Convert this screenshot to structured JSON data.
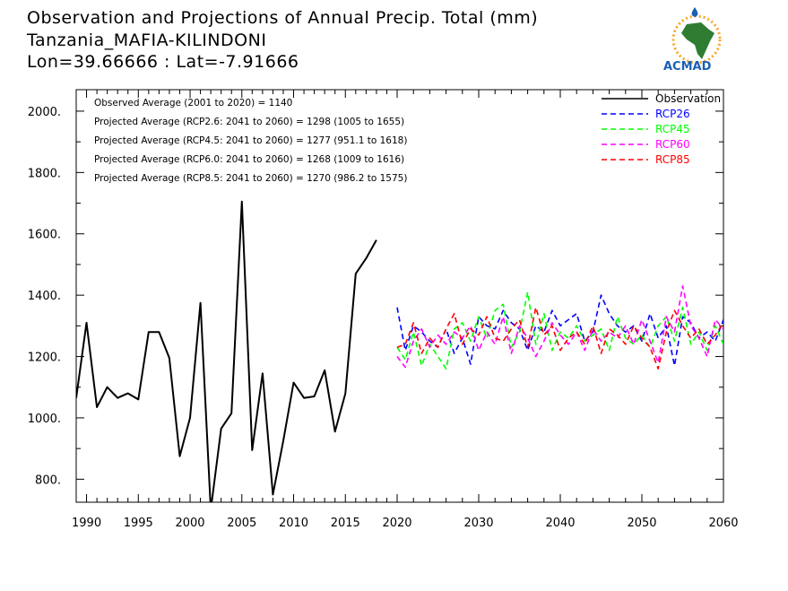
{
  "header": {
    "title": "Observation and Projections of Annual Precip. Total (mm)",
    "location": "Tanzania_MAFIA-KILINDONI",
    "coords": "Lon=39.66666 : Lat=-7.91666"
  },
  "logo": {
    "text": "ACMAD",
    "colors": {
      "africa": "#2e7d32",
      "ring": "#f5a623",
      "text": "#1a5fb4"
    }
  },
  "chart_data": {
    "type": "line",
    "xlim": [
      1989,
      2060
    ],
    "ylim": [
      725,
      2070
    ],
    "x_ticks": [
      1990,
      1995,
      2000,
      2005,
      2010,
      2015,
      2020,
      2030,
      2040,
      2050,
      2060
    ],
    "y_ticks": [
      800,
      1000,
      1200,
      1400,
      1600,
      1800,
      2000
    ],
    "y_tick_labels": [
      "800.",
      "1000.",
      "1200.",
      "1400.",
      "1600.",
      "1800.",
      "2000."
    ],
    "annotations": [
      "Observed Average (2001 to 2020) = 1140",
      "Projected Average (RCP2.6: 2041 to 2060) = 1298 (1005 to 1655)",
      "Projected Average (RCP4.5: 2041 to 2060) = 1277 (951.1 to 1618)",
      "Projected Average (RCP6.0: 2041 to 2060) = 1268 (1009 to 1616)",
      "Projected Average (RCP8.5: 2041 to 2060) = 1270 (986.2 to 1575)"
    ],
    "legend_position": "top-right",
    "series": [
      {
        "name": "Observation",
        "color": "#000000",
        "dashed": false,
        "x": [
          1989,
          1990,
          1991,
          1992,
          1993,
          1994,
          1995,
          1996,
          1997,
          1998,
          1999,
          2000,
          2001,
          2002,
          2003,
          2004,
          2005,
          2006,
          2007,
          2008,
          2009,
          2010,
          2011,
          2012,
          2013,
          2014,
          2015,
          2016,
          2017,
          2018,
          2019
        ],
        "values": [
          1065,
          1310,
          1035,
          1100,
          1065,
          1080,
          1060,
          1280,
          1280,
          1195,
          875,
          1000,
          1375,
          700,
          965,
          1015,
          1705,
          895,
          1145,
          750,
          925,
          1115,
          1065,
          1070,
          1155,
          955,
          1080,
          1470,
          1520,
          1580,
          null
        ]
      },
      {
        "name": "RCP26",
        "color": "#0000ff",
        "dashed": true,
        "x": [
          2020,
          2021,
          2022,
          2023,
          2024,
          2025,
          2026,
          2027,
          2028,
          2029,
          2030,
          2031,
          2032,
          2033,
          2034,
          2035,
          2036,
          2037,
          2038,
          2039,
          2040,
          2041,
          2042,
          2043,
          2044,
          2045,
          2046,
          2047,
          2048,
          2049,
          2050,
          2051,
          2052,
          2053,
          2054,
          2055,
          2056,
          2057,
          2058,
          2059,
          2060
        ],
        "values": [
          1360,
          1220,
          1300,
          1280,
          1250,
          1230,
          1290,
          1210,
          1260,
          1175,
          1330,
          1300,
          1290,
          1350,
          1310,
          1290,
          1220,
          1300,
          1280,
          1350,
          1300,
          1320,
          1340,
          1250,
          1280,
          1400,
          1340,
          1300,
          1280,
          1300,
          1250,
          1340,
          1260,
          1300,
          1170,
          1330,
          1310,
          1260,
          1280,
          1250,
          1320
        ]
      },
      {
        "name": "RCP45",
        "color": "#00ff00",
        "dashed": true,
        "x": [
          2020,
          2021,
          2022,
          2023,
          2024,
          2025,
          2026,
          2027,
          2028,
          2029,
          2030,
          2031,
          2032,
          2033,
          2034,
          2035,
          2036,
          2037,
          2038,
          2039,
          2040,
          2041,
          2042,
          2043,
          2044,
          2045,
          2046,
          2047,
          2048,
          2049,
          2050,
          2051,
          2052,
          2053,
          2054,
          2055,
          2056,
          2057,
          2058,
          2059,
          2060
        ],
        "values": [
          1230,
          1190,
          1280,
          1170,
          1240,
          1200,
          1160,
          1290,
          1310,
          1250,
          1330,
          1260,
          1350,
          1370,
          1230,
          1280,
          1410,
          1240,
          1340,
          1220,
          1280,
          1260,
          1300,
          1250,
          1270,
          1290,
          1220,
          1330,
          1260,
          1240,
          1270,
          1230,
          1300,
          1330,
          1250,
          1360,
          1240,
          1280,
          1220,
          1300,
          1240
        ]
      },
      {
        "name": "RCP60",
        "color": "#ff00ff",
        "dashed": true,
        "x": [
          2020,
          2021,
          2022,
          2023,
          2024,
          2025,
          2026,
          2027,
          2028,
          2029,
          2030,
          2031,
          2032,
          2033,
          2034,
          2035,
          2036,
          2037,
          2038,
          2039,
          2040,
          2041,
          2042,
          2043,
          2044,
          2045,
          2046,
          2047,
          2048,
          2049,
          2050,
          2051,
          2052,
          2053,
          2054,
          2055,
          2056,
          2057,
          2058,
          2059,
          2060
        ],
        "values": [
          1200,
          1165,
          1250,
          1290,
          1230,
          1270,
          1240,
          1280,
          1260,
          1300,
          1220,
          1280,
          1240,
          1330,
          1210,
          1300,
          1260,
          1200,
          1250,
          1310,
          1270,
          1240,
          1280,
          1220,
          1290,
          1250,
          1280,
          1260,
          1300,
          1240,
          1320,
          1250,
          1180,
          1330,
          1280,
          1430,
          1300,
          1260,
          1200,
          1320,
          1290
        ]
      },
      {
        "name": "RCP85",
        "color": "#ff0000",
        "dashed": true,
        "x": [
          2020,
          2021,
          2022,
          2023,
          2024,
          2025,
          2026,
          2027,
          2028,
          2029,
          2030,
          2031,
          2032,
          2033,
          2034,
          2035,
          2036,
          2037,
          2038,
          2039,
          2040,
          2041,
          2042,
          2043,
          2044,
          2045,
          2046,
          2047,
          2048,
          2049,
          2050,
          2051,
          2052,
          2053,
          2054,
          2055,
          2056,
          2057,
          2058,
          2059,
          2060
        ],
        "values": [
          1230,
          1240,
          1310,
          1210,
          1260,
          1230,
          1290,
          1340,
          1240,
          1290,
          1270,
          1330,
          1260,
          1250,
          1290,
          1320,
          1230,
          1360,
          1270,
          1300,
          1220,
          1260,
          1280,
          1240,
          1300,
          1210,
          1290,
          1270,
          1240,
          1300,
          1260,
          1230,
          1160,
          1280,
          1350,
          1300,
          1260,
          1290,
          1240,
          1270,
          1310
        ]
      }
    ]
  }
}
